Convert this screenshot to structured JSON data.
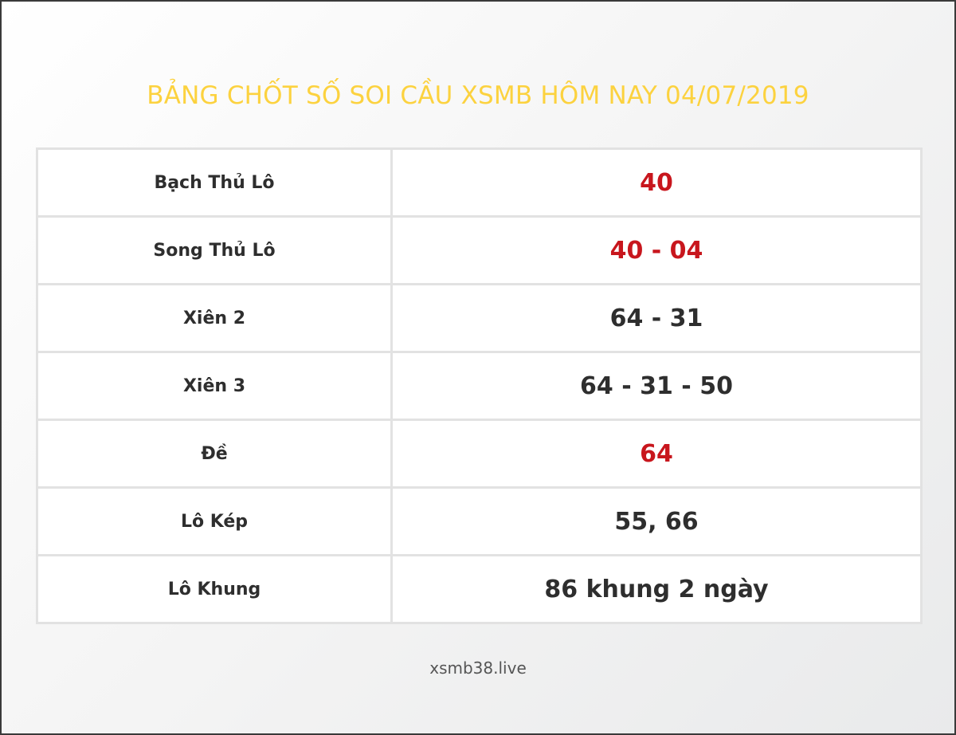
{
  "title": "BẢNG CHỐT SỐ SOI CẦU XSMB HÔM NAY 04/07/2019",
  "colors": {
    "title": "#fcd23f",
    "highlight": "#c8161d",
    "text": "#2e2e2e"
  },
  "rows": [
    {
      "label": "Bạch Thủ Lô",
      "value": "40",
      "highlight": true
    },
    {
      "label": "Song Thủ Lô",
      "value": "40 - 04",
      "highlight": true
    },
    {
      "label": "Xiên 2",
      "value": "64 - 31",
      "highlight": false
    },
    {
      "label": "Xiên 3",
      "value": "64 - 31 - 50",
      "highlight": false
    },
    {
      "label": "Đề",
      "value": "64",
      "highlight": true
    },
    {
      "label": "Lô Kép",
      "value": "55, 66",
      "highlight": false
    },
    {
      "label": "Lô Khung",
      "value": "86 khung 2 ngày",
      "highlight": false
    }
  ],
  "footer": "xsmb38.live"
}
